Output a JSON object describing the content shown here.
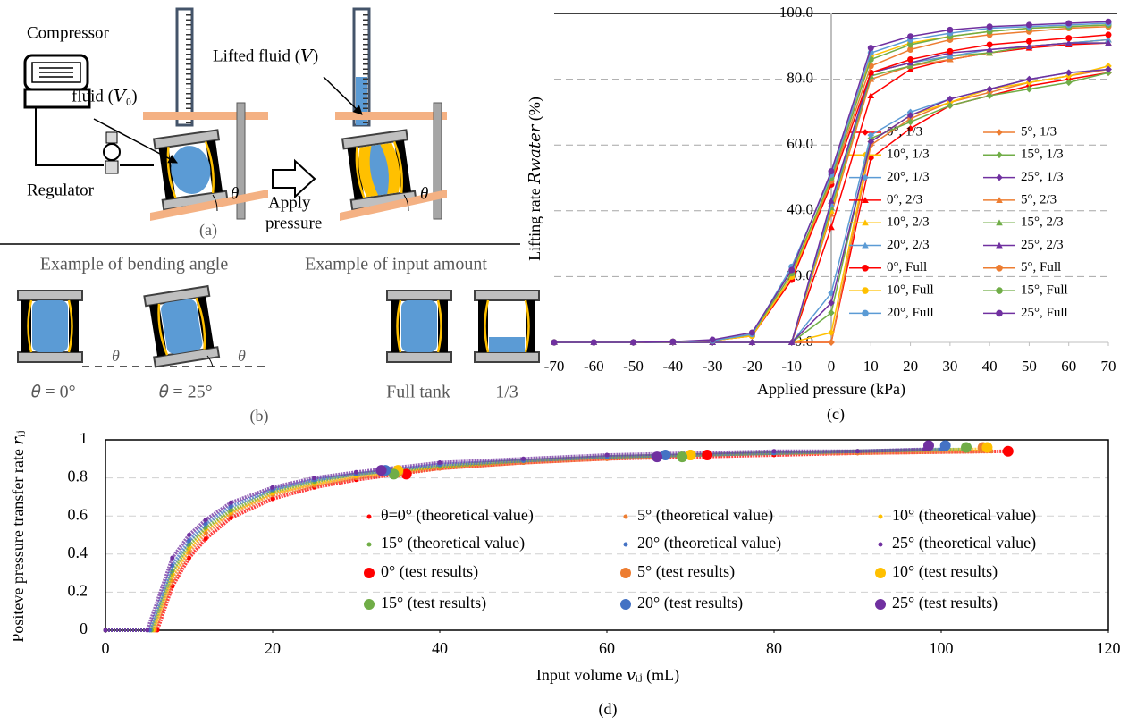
{
  "diagram_a": {
    "compressor": "Compressor",
    "fluid": "fluid  (𝑉₀)",
    "lifted_fluid": "Lifted fluid (𝑉)",
    "regulator": "Regulator",
    "apply": "Apply",
    "pressure": "pressure",
    "theta": [
      "θ",
      "θ"
    ],
    "label": "(a)"
  },
  "diagram_b": {
    "titles": [
      "Example of bending angle",
      "Example of input amount"
    ],
    "theta": [
      "θ",
      "θ"
    ],
    "captions": [
      "𝜃 = 0°",
      "𝜃 = 25°",
      "Full tank",
      "1/3"
    ],
    "label": "(b)"
  },
  "chart_data": [
    {
      "type": "line",
      "label": "(c)",
      "x_label": "Applied pressure (kPa)",
      "y_label": "Lifting rate 𝑅𝑤𝑎𝑡𝑒𝑟 (%)",
      "grid": true,
      "x": [
        -70,
        -60,
        -50,
        -40,
        -30,
        -20,
        -10,
        0,
        10,
        20,
        30,
        40,
        50,
        60,
        70
      ],
      "xlim": [
        -70,
        70
      ],
      "xticks": [
        -70,
        -60,
        -50,
        -40,
        -30,
        -20,
        -10,
        0,
        10,
        20,
        30,
        40,
        50,
        60,
        70
      ],
      "ylim": [
        0,
        100
      ],
      "yticks": [
        {
          "value": 0,
          "label": "0.0"
        },
        {
          "value": 20,
          "label": "20.0"
        },
        {
          "value": 40,
          "label": "40.0"
        },
        {
          "value": 60,
          "label": "60.0"
        },
        {
          "value": 80,
          "label": "80.0"
        },
        {
          "value": 100,
          "label": "100.0"
        }
      ],
      "series": [
        {
          "name": "0°, 1/3",
          "color": "#ff0000",
          "marker": "diamond",
          "values": [
            0,
            0,
            0,
            0,
            0,
            0,
            0,
            0,
            56,
            65,
            72,
            75,
            78,
            80,
            82
          ]
        },
        {
          "name": "5°, 1/3",
          "color": "#ed7d31",
          "marker": "diamond",
          "values": [
            0,
            0,
            0,
            0,
            0,
            0,
            0,
            0,
            60,
            68,
            73,
            76,
            79,
            81,
            83
          ]
        },
        {
          "name": "10°, 1/3",
          "color": "#ffc000",
          "marker": "diamond",
          "values": [
            0,
            0,
            0,
            0,
            0,
            0,
            0,
            3,
            61,
            69,
            73,
            77,
            79,
            81,
            84
          ]
        },
        {
          "name": "15°, 1/3",
          "color": "#70ad47",
          "marker": "diamond",
          "values": [
            0,
            0,
            0,
            0,
            0,
            0,
            0,
            9,
            62,
            67,
            72,
            75,
            77,
            79,
            82
          ]
        },
        {
          "name": "20°, 1/3",
          "color": "#5b9bd5",
          "marker": "diamond",
          "values": [
            0,
            0,
            0,
            0,
            0,
            0,
            0,
            15,
            63,
            70,
            74,
            77,
            80,
            82,
            83
          ]
        },
        {
          "name": "25°, 1/3",
          "color": "#7030a0",
          "marker": "diamond",
          "values": [
            0,
            0,
            0,
            0,
            0,
            0,
            0,
            12,
            61,
            69,
            74,
            77,
            80,
            82,
            83
          ]
        },
        {
          "name": "0°, 2/3",
          "color": "#ff0000",
          "marker": "triangle",
          "values": [
            0,
            0,
            0,
            0,
            0,
            0,
            0,
            35,
            75,
            83,
            86,
            88,
            89.5,
            90.5,
            91
          ]
        },
        {
          "name": "5°, 2/3",
          "color": "#ed7d31",
          "marker": "triangle",
          "values": [
            0,
            0,
            0,
            0,
            0,
            0,
            0,
            39,
            80,
            84,
            86,
            88,
            90,
            91,
            92
          ]
        },
        {
          "name": "10°, 2/3",
          "color": "#ffc000",
          "marker": "triangle",
          "values": [
            0,
            0,
            0,
            0,
            0,
            0,
            0,
            40,
            82,
            85,
            87,
            88,
            90,
            91,
            92
          ]
        },
        {
          "name": "15°, 2/3",
          "color": "#70ad47",
          "marker": "triangle",
          "values": [
            0,
            0,
            0,
            0,
            0,
            0,
            0,
            41,
            81,
            84,
            87,
            88,
            90,
            91,
            91
          ]
        },
        {
          "name": "20°, 2/3",
          "color": "#5b9bd5",
          "marker": "triangle",
          "values": [
            0,
            0,
            0,
            0,
            0,
            0,
            0,
            42,
            82,
            85,
            87,
            89,
            90,
            91,
            92
          ]
        },
        {
          "name": "25°, 2/3",
          "color": "#7030a0",
          "marker": "triangle",
          "values": [
            0,
            0,
            0,
            0,
            0,
            0,
            0,
            43,
            82,
            85,
            88,
            89,
            90,
            91,
            91
          ]
        },
        {
          "name": "0°, Full",
          "color": "#ff0000",
          "marker": "circle",
          "values": [
            0,
            0,
            0,
            0.2,
            0.5,
            2,
            19,
            48,
            82,
            86,
            88.5,
            90.5,
            91.5,
            92.5,
            93.5
          ]
        },
        {
          "name": "5°, Full",
          "color": "#ed7d31",
          "marker": "circle",
          "values": [
            0,
            0,
            0,
            0.2,
            0.5,
            2,
            20,
            49,
            84,
            89,
            92,
            93.5,
            94.5,
            95.5,
            96
          ]
        },
        {
          "name": "10°, Full",
          "color": "#ffc000",
          "marker": "circle",
          "values": [
            0,
            0,
            0,
            0.2,
            0.5,
            2,
            20,
            50,
            87,
            91,
            93,
            94.5,
            95.5,
            96,
            96.5
          ]
        },
        {
          "name": "15°, Full",
          "color": "#70ad47",
          "marker": "circle",
          "values": [
            0,
            0,
            0,
            0.2,
            0.5,
            2.5,
            21,
            50,
            86,
            90.5,
            93,
            94.5,
            95.5,
            96,
            96.5
          ]
        },
        {
          "name": "20°, Full",
          "color": "#5b9bd5",
          "marker": "circle",
          "values": [
            0,
            0,
            0,
            0.2,
            0.5,
            2.5,
            23,
            51,
            88,
            92,
            94,
            95.5,
            96,
            96.5,
            97
          ]
        },
        {
          "name": "25°, Full",
          "color": "#7030a0",
          "marker": "circle",
          "values": [
            0,
            0,
            0,
            0.2,
            0.8,
            3,
            22,
            52,
            89.5,
            93,
            95,
            96,
            96.5,
            97,
            97.5
          ]
        }
      ]
    },
    {
      "type": "scatter",
      "label": "(d)",
      "x_label": "Input volume 𝑣ᵢⱼ (mL)",
      "y_label": "Positeve pressure transfer rate 𝑟ᵢⱼ",
      "grid": true,
      "xlim": [
        0,
        120
      ],
      "xticks": [
        0,
        20,
        40,
        60,
        80,
        100,
        120
      ],
      "ylim": [
        0,
        1
      ],
      "yticks": [
        0,
        0.2,
        0.4,
        0.6,
        0.8,
        1
      ],
      "series": [
        {
          "name": "θ=0°  (theoretical value)",
          "color": "#ff0000",
          "marker": "small",
          "x": [
            0,
            6.2,
            8,
            10,
            12,
            15,
            20,
            25,
            30,
            40,
            50,
            60,
            70,
            80,
            90,
            108
          ],
          "values": [
            0,
            0,
            0.23,
            0.38,
            0.48,
            0.59,
            0.69,
            0.75,
            0.79,
            0.85,
            0.88,
            0.9,
            0.91,
            0.92,
            0.93,
            0.94
          ]
        },
        {
          "name": "5° (theoretical value)",
          "color": "#ed7d31",
          "marker": "small",
          "x": [
            0,
            5.9,
            8,
            10,
            12,
            15,
            20,
            25,
            30,
            40,
            50,
            60,
            70,
            80,
            90,
            106
          ],
          "values": [
            0,
            0,
            0.26,
            0.41,
            0.51,
            0.61,
            0.71,
            0.76,
            0.8,
            0.85,
            0.88,
            0.9,
            0.92,
            0.93,
            0.93,
            0.94
          ]
        },
        {
          "name": "10° (theoretical value)",
          "color": "#ffc000",
          "marker": "small",
          "x": [
            0,
            5.7,
            8,
            10,
            12,
            15,
            20,
            25,
            30,
            40,
            50,
            60,
            70,
            80,
            90,
            105
          ],
          "values": [
            0,
            0,
            0.29,
            0.43,
            0.53,
            0.62,
            0.72,
            0.77,
            0.81,
            0.86,
            0.89,
            0.91,
            0.92,
            0.93,
            0.94,
            0.95
          ]
        },
        {
          "name": "15° (theoretical value)",
          "color": "#70ad47",
          "marker": "small",
          "x": [
            0,
            5.5,
            8,
            10,
            12,
            15,
            20,
            25,
            30,
            40,
            50,
            60,
            70,
            80,
            90,
            103
          ],
          "values": [
            0,
            0,
            0.31,
            0.45,
            0.54,
            0.63,
            0.73,
            0.78,
            0.82,
            0.86,
            0.89,
            0.91,
            0.92,
            0.93,
            0.94,
            0.95
          ]
        },
        {
          "name": "20° (theoretical value)",
          "color": "#4472c4",
          "marker": "small",
          "x": [
            0,
            5.3,
            8,
            10,
            12,
            15,
            20,
            25,
            30,
            40,
            50,
            60,
            70,
            80,
            90,
            100
          ],
          "values": [
            0,
            0,
            0.34,
            0.47,
            0.56,
            0.65,
            0.74,
            0.79,
            0.82,
            0.87,
            0.89,
            0.91,
            0.92,
            0.93,
            0.94,
            0.95
          ]
        },
        {
          "name": "25° (theoretical value)",
          "color": "#7030a0",
          "marker": "small",
          "x": [
            0,
            5,
            8,
            10,
            12,
            15,
            20,
            25,
            30,
            40,
            50,
            60,
            70,
            80,
            90,
            98
          ],
          "values": [
            0,
            0,
            0.38,
            0.5,
            0.58,
            0.67,
            0.75,
            0.8,
            0.83,
            0.88,
            0.9,
            0.92,
            0.93,
            0.94,
            0.94,
            0.95
          ]
        },
        {
          "name": "0° (test results)",
          "color": "#ff0000",
          "marker": "large",
          "x": [
            36,
            72,
            108
          ],
          "values": [
            0.82,
            0.92,
            0.94
          ]
        },
        {
          "name": "5° (test results)",
          "color": "#ed7d31",
          "marker": "large",
          "x": [
            35,
            70,
            105
          ],
          "values": [
            0.83,
            0.92,
            0.96
          ]
        },
        {
          "name": "10° (test results)",
          "color": "#ffc000",
          "marker": "large",
          "x": [
            35,
            70,
            105.5
          ],
          "values": [
            0.84,
            0.92,
            0.96
          ]
        },
        {
          "name": "15° (test results)",
          "color": "#70ad47",
          "marker": "large",
          "x": [
            34.5,
            69,
            103
          ],
          "values": [
            0.82,
            0.91,
            0.96
          ]
        },
        {
          "name": "20° (test results)",
          "color": "#4472c4",
          "marker": "large",
          "x": [
            33.5,
            67,
            100.5
          ],
          "values": [
            0.84,
            0.92,
            0.97
          ]
        },
        {
          "name": "25° (test results)",
          "color": "#7030a0",
          "marker": "large",
          "x": [
            33,
            66,
            98.5
          ],
          "values": [
            0.84,
            0.91,
            0.97
          ]
        }
      ]
    }
  ]
}
